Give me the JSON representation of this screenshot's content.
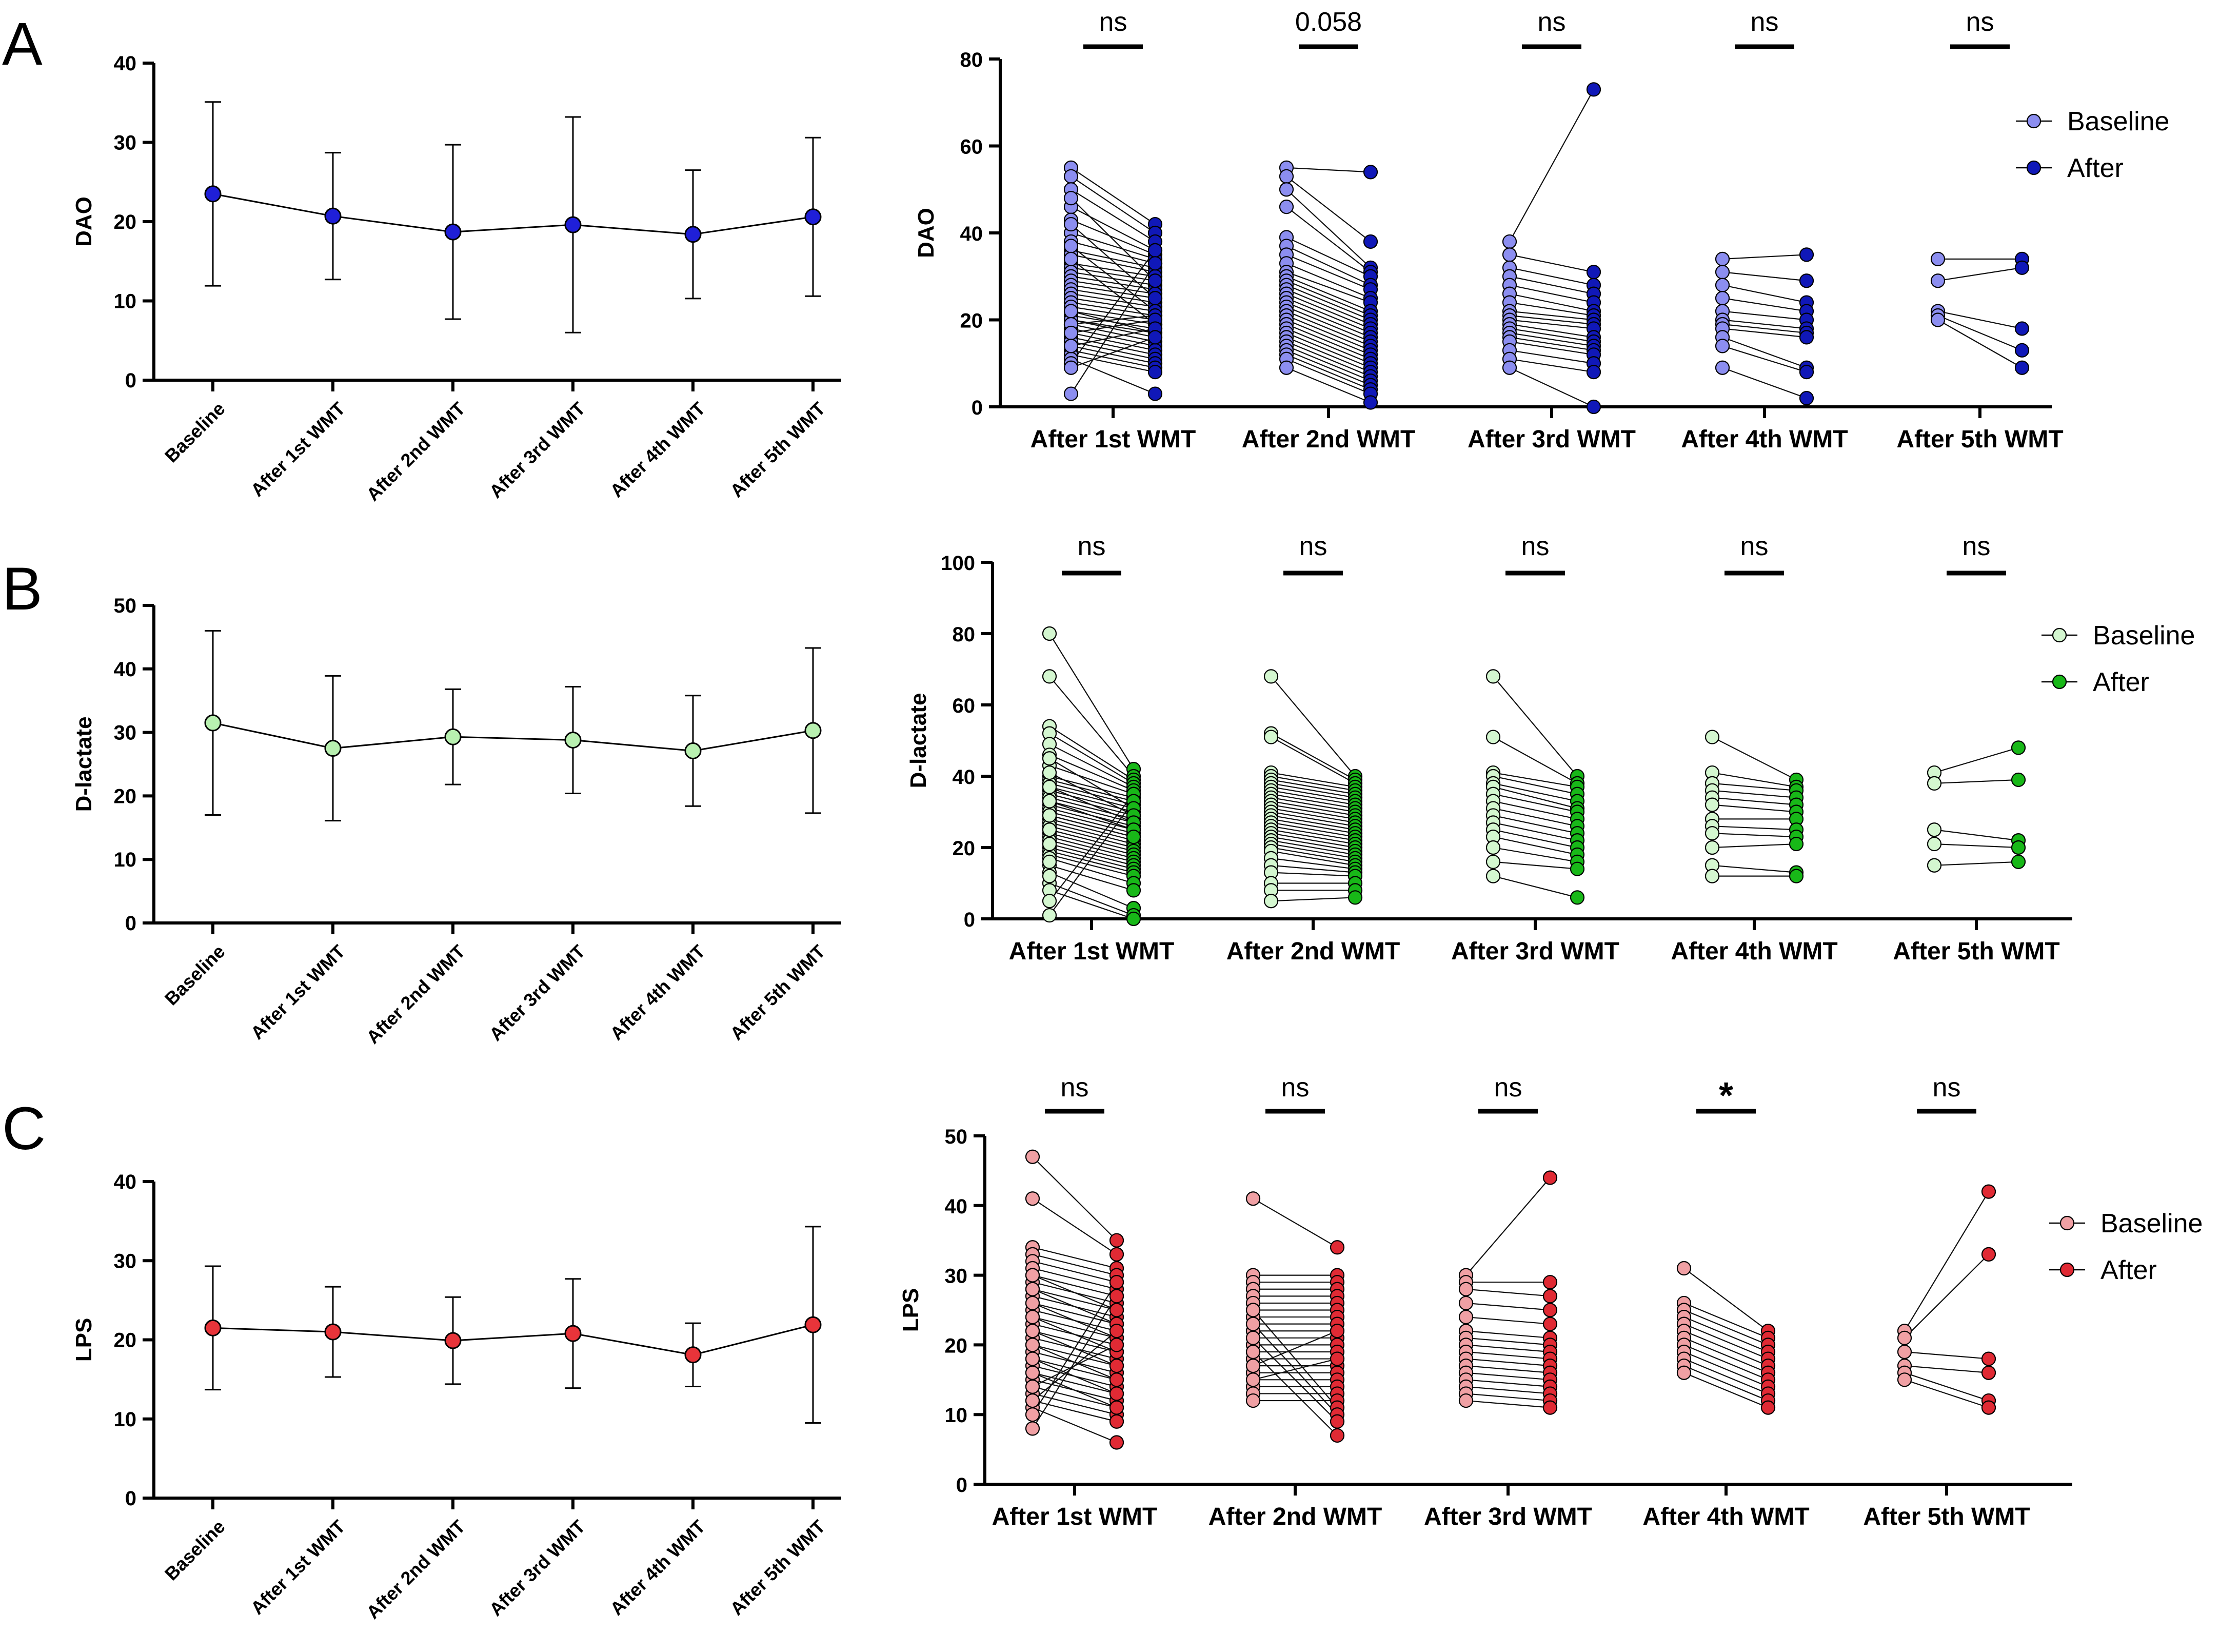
{
  "figure": {
    "panels": [
      "A",
      "B",
      "C"
    ],
    "categories": [
      "Baseline",
      "After 1st WMT",
      "After 2nd WMT",
      "After 3rd WMT",
      "After 4th WMT",
      "After 5th WMT"
    ]
  },
  "chart_data": [
    {
      "id": "A-left",
      "type": "line",
      "panel": "A",
      "ylabel": "DAO",
      "ylim": [
        0,
        40
      ],
      "yticks": [
        0,
        10,
        20,
        30,
        40
      ],
      "categories": [
        "Baseline",
        "After 1st WMT",
        "After 2nd WMT",
        "After 3rd WMT",
        "After 4th WMT",
        "After 5th WMT"
      ],
      "series": [
        {
          "name": "DAO",
          "color": "#1f1fd8",
          "mean": [
            23.5,
            20.7,
            18.7,
            19.6,
            18.4,
            20.6
          ],
          "sd": [
            11.6,
            8.0,
            11.0,
            13.6,
            8.1,
            10.0
          ]
        }
      ]
    },
    {
      "id": "A-right",
      "type": "scatter",
      "panel": "A",
      "ylabel": "DAO",
      "ylim": [
        0,
        80
      ],
      "yticks": [
        0,
        20,
        40,
        60,
        80
      ],
      "groups": [
        "After 1st WMT",
        "After 2nd WMT",
        "After 3rd WMT",
        "After 4th WMT",
        "After 5th WMT"
      ],
      "significance": [
        "ns",
        "0.058",
        "ns",
        "ns",
        "ns"
      ],
      "legend": {
        "baseline": "Baseline",
        "after": "After",
        "position": "top-right"
      },
      "colors": {
        "baseline": "#8c8ef0",
        "after": "#1018b8"
      },
      "pairs": [
        {
          "baseline": [
            55,
            53,
            50,
            46,
            43,
            40,
            38,
            36,
            35,
            33,
            32,
            31,
            30,
            29,
            28,
            27,
            26,
            25,
            24,
            23,
            22,
            21,
            20,
            20,
            19,
            18,
            17,
            16,
            15,
            14,
            13,
            12,
            11,
            10,
            3,
            48,
            42,
            37,
            34,
            22,
            19,
            17,
            14,
            9
          ],
          "after": [
            42,
            40,
            38,
            36,
            35,
            34,
            33,
            32,
            31,
            30,
            29,
            28,
            27,
            26,
            25,
            24,
            23,
            22,
            21,
            20,
            19,
            18,
            17,
            16,
            15,
            14,
            13,
            12,
            11,
            10,
            9,
            8,
            3,
            36,
            33,
            29,
            25,
            22,
            19,
            17,
            21,
            20,
            18,
            16
          ]
        },
        {
          "baseline": [
            55,
            53,
            50,
            46,
            39,
            37,
            35,
            33,
            31,
            30,
            29,
            28,
            27,
            26,
            25,
            24,
            23,
            22,
            21,
            20,
            19,
            18,
            17,
            16,
            15,
            14,
            13,
            12,
            11,
            9
          ],
          "after": [
            54,
            38,
            32,
            31,
            30,
            28,
            27,
            25,
            24,
            22,
            21,
            20,
            19,
            18,
            17,
            16,
            15,
            14,
            13,
            12,
            11,
            10,
            9,
            8,
            7,
            6,
            5,
            4,
            3,
            1
          ]
        },
        {
          "baseline": [
            38,
            35,
            32,
            30,
            28,
            26,
            24,
            22,
            21,
            20,
            19,
            18,
            17,
            16,
            15,
            13,
            11,
            9
          ],
          "after": [
            73,
            31,
            28,
            26,
            24,
            22,
            21,
            20,
            19,
            18,
            16,
            15,
            14,
            13,
            12,
            10,
            8,
            0
          ]
        },
        {
          "baseline": [
            34,
            31,
            28,
            25,
            22,
            20,
            19,
            18,
            16,
            14,
            9
          ],
          "after": [
            35,
            29,
            24,
            22,
            20,
            18,
            17,
            16,
            9,
            8,
            2
          ]
        },
        {
          "baseline": [
            34,
            29,
            22,
            21,
            20
          ],
          "after": [
            34,
            32,
            18,
            13,
            9
          ]
        }
      ]
    },
    {
      "id": "B-left",
      "type": "line",
      "panel": "B",
      "ylabel": "D-lactate",
      "ylim": [
        0,
        50
      ],
      "yticks": [
        0,
        10,
        20,
        30,
        40,
        50
      ],
      "categories": [
        "Baseline",
        "After 1st WMT",
        "After 2nd WMT",
        "After 3rd WMT",
        "After 4th WMT",
        "After 5th WMT"
      ],
      "series": [
        {
          "name": "D-lactate",
          "color": "#b8f0b0",
          "mean": [
            31.5,
            27.5,
            29.3,
            28.8,
            27.1,
            30.3
          ],
          "sd": [
            14.5,
            11.4,
            7.5,
            8.4,
            8.7,
            13.0
          ]
        }
      ]
    },
    {
      "id": "B-right",
      "type": "scatter",
      "panel": "B",
      "ylabel": "D-lactate",
      "ylim": [
        0,
        100
      ],
      "yticks": [
        0,
        20,
        40,
        60,
        80,
        100
      ],
      "groups": [
        "After 1st WMT",
        "After 2nd WMT",
        "After 3rd WMT",
        "After 4th WMT",
        "After 5th WMT"
      ],
      "significance": [
        "ns",
        "ns",
        "ns",
        "ns",
        "ns"
      ],
      "legend": {
        "baseline": "Baseline",
        "after": "After",
        "position": "top-right"
      },
      "colors": {
        "baseline": "#d4f7d0",
        "after": "#18b818"
      },
      "pairs": [
        {
          "baseline": [
            80,
            68,
            54,
            52,
            49,
            46,
            43,
            40,
            39,
            38,
            37,
            36,
            35,
            34,
            33,
            32,
            31,
            30,
            29,
            28,
            27,
            26,
            25,
            24,
            23,
            22,
            21,
            20,
            19,
            18,
            17,
            15,
            13,
            10,
            8,
            5,
            1,
            45,
            41,
            37,
            33,
            29,
            25,
            21,
            16,
            12
          ],
          "after": [
            42,
            40,
            39,
            38,
            37,
            36,
            35,
            34,
            33,
            32,
            31,
            30,
            29,
            28,
            27,
            26,
            25,
            24,
            23,
            22,
            21,
            20,
            19,
            18,
            17,
            16,
            15,
            14,
            13,
            12,
            10,
            8,
            3,
            1,
            0,
            35,
            33,
            31,
            29,
            27,
            25,
            23
          ]
        },
        {
          "baseline": [
            68,
            52,
            51,
            41,
            40,
            39,
            38,
            37,
            36,
            35,
            34,
            33,
            32,
            31,
            30,
            29,
            28,
            27,
            26,
            25,
            24,
            23,
            22,
            21,
            20,
            19,
            17,
            15,
            13,
            10,
            8,
            5
          ],
          "after": [
            40,
            39,
            38,
            37,
            36,
            35,
            34,
            33,
            32,
            31,
            30,
            29,
            28,
            27,
            26,
            25,
            24,
            23,
            22,
            21,
            20,
            19,
            18,
            17,
            16,
            15,
            14,
            13,
            12,
            10,
            8,
            6
          ]
        },
        {
          "baseline": [
            68,
            51,
            41,
            40,
            38,
            37,
            35,
            33,
            31,
            29,
            27,
            25,
            23,
            20,
            16,
            12
          ],
          "after": [
            40,
            38,
            37,
            35,
            33,
            31,
            30,
            28,
            26,
            24,
            22,
            20,
            18,
            16,
            14,
            6
          ]
        },
        {
          "baseline": [
            51,
            41,
            38,
            36,
            34,
            32,
            28,
            26,
            24,
            20,
            15,
            12
          ],
          "after": [
            39,
            37,
            36,
            34,
            32,
            30,
            28,
            25,
            23,
            21,
            13,
            12
          ]
        },
        {
          "baseline": [
            41,
            38,
            25,
            21,
            15
          ],
          "after": [
            48,
            39,
            22,
            20,
            16
          ]
        }
      ]
    },
    {
      "id": "C-left",
      "type": "line",
      "panel": "C",
      "ylabel": "LPS",
      "ylim": [
        0,
        40
      ],
      "yticks": [
        0,
        10,
        20,
        30,
        40
      ],
      "categories": [
        "Baseline",
        "After 1st WMT",
        "After 2nd WMT",
        "After 3rd WMT",
        "After 4th WMT",
        "After 5th WMT"
      ],
      "series": [
        {
          "name": "LPS",
          "color": "#e8343a",
          "mean": [
            21.5,
            21.0,
            19.9,
            20.8,
            18.1,
            21.9
          ],
          "sd": [
            7.8,
            5.7,
            5.5,
            6.9,
            4.0,
            12.4
          ]
        }
      ]
    },
    {
      "id": "C-right",
      "type": "scatter",
      "panel": "C",
      "ylabel": "LPS",
      "ylim": [
        0,
        50
      ],
      "yticks": [
        0,
        10,
        20,
        30,
        40,
        50
      ],
      "groups": [
        "After 1st WMT",
        "After 2nd WMT",
        "After 3rd WMT",
        "After 4th WMT",
        "After 5th WMT"
      ],
      "significance": [
        "ns",
        "ns",
        "ns",
        "*",
        "ns"
      ],
      "legend": {
        "baseline": "Baseline",
        "after": "After",
        "position": "top-right"
      },
      "colors": {
        "baseline": "#f0a0a4",
        "after": "#e02a34"
      },
      "pairs": [
        {
          "baseline": [
            47,
            41,
            34,
            33,
            32,
            31,
            30,
            29,
            28,
            27,
            26,
            25,
            24,
            23,
            22,
            21,
            20,
            19,
            18,
            17,
            16,
            15,
            14,
            13,
            12,
            11,
            10,
            8,
            30,
            28,
            26,
            24,
            22,
            20,
            18,
            16,
            14,
            12
          ],
          "after": [
            35,
            33,
            31,
            30,
            29,
            28,
            27,
            26,
            25,
            24,
            23,
            22,
            21,
            20,
            19,
            18,
            17,
            16,
            15,
            14,
            13,
            12,
            11,
            10,
            9,
            6,
            29,
            27,
            25,
            23,
            21,
            19,
            17,
            15,
            13,
            11,
            20,
            22
          ]
        },
        {
          "baseline": [
            41,
            30,
            29,
            28,
            27,
            26,
            25,
            24,
            23,
            22,
            21,
            20,
            19,
            18,
            17,
            16,
            15,
            14,
            13,
            12,
            25,
            23,
            21,
            19,
            17,
            15
          ],
          "after": [
            34,
            30,
            29,
            28,
            27,
            26,
            25,
            24,
            23,
            22,
            21,
            20,
            19,
            18,
            17,
            16,
            15,
            14,
            13,
            12,
            11,
            10,
            9,
            7,
            22,
            18
          ]
        },
        {
          "baseline": [
            30,
            29,
            28,
            26,
            24,
            22,
            21,
            20,
            19,
            18,
            17,
            16,
            15,
            14,
            13,
            12
          ],
          "after": [
            44,
            29,
            27,
            25,
            23,
            21,
            20,
            19,
            18,
            17,
            16,
            15,
            14,
            13,
            12,
            11
          ]
        },
        {
          "baseline": [
            31,
            26,
            25,
            24,
            23,
            22,
            21,
            20,
            19,
            18,
            17,
            16
          ],
          "after": [
            22,
            21,
            20,
            19,
            18,
            17,
            16,
            15,
            14,
            13,
            12,
            11
          ]
        },
        {
          "baseline": [
            22,
            21,
            19,
            17,
            16,
            15
          ],
          "after": [
            42,
            33,
            18,
            16,
            12,
            11
          ]
        }
      ]
    }
  ]
}
